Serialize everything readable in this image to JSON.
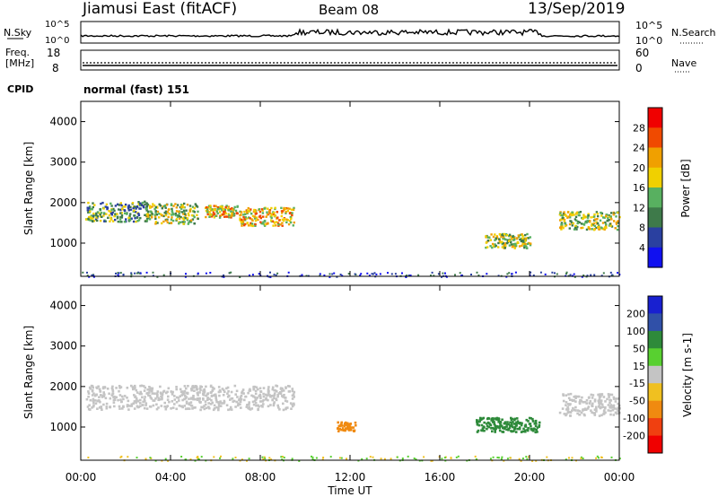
{
  "header": {
    "station": "Jiamusi East (fitACF)",
    "beam": "Beam 08",
    "date": "13/Sep/2019"
  },
  "noise_panel": {
    "left_label": "N.Sky",
    "right_label": "N.Search",
    "left_ticks": [
      "10^5",
      "10^0"
    ],
    "right_ticks": [
      "10^5",
      "10^0"
    ]
  },
  "freq_panel": {
    "left_label_1": "Freq.",
    "left_label_2": "[MHz]",
    "left_ticks": [
      "18",
      "8"
    ],
    "right_label": "Nave",
    "right_ticks": [
      "60",
      "0"
    ]
  },
  "cpid": {
    "label": "CPID",
    "value": "normal (fast) 151"
  },
  "axes": {
    "ylabel": "Slant Range [km]",
    "yticks": [
      "4000",
      "3000",
      "2000",
      "1000"
    ],
    "xlabel": "Time UT",
    "xticks": [
      "00:00",
      "04:00",
      "08:00",
      "12:00",
      "16:00",
      "20:00",
      "00:00"
    ]
  },
  "power_scale": {
    "label": "Power [dB]",
    "ticks": [
      "28",
      "24",
      "20",
      "16",
      "12",
      "8",
      "4"
    ],
    "colors": [
      "#f00000",
      "#f04a00",
      "#f0a000",
      "#f0d000",
      "#58b060",
      "#3e7a4a",
      "#2a40a0",
      "#1010f0"
    ]
  },
  "velocity_scale": {
    "label": "Velocity [m s-1]",
    "ticks": [
      "200",
      "100",
      "50",
      "15",
      "-15",
      "-50",
      "-100",
      "-200"
    ],
    "colors": [
      "#1820d0",
      "#3050a8",
      "#2e8a3a",
      "#58d030",
      "#c4c4c4",
      "#f0c020",
      "#f08a10",
      "#f04010",
      "#f00000"
    ]
  },
  "chart_data": {
    "type": "heatmap",
    "x_range_hours": [
      0,
      24
    ],
    "y_range_km": [
      180,
      4500
    ],
    "power_patches": [
      {
        "t0": 0.2,
        "t1": 3.0,
        "r0": 1550,
        "r1": 2050,
        "level": 3
      },
      {
        "t0": 2.8,
        "t1": 5.2,
        "r0": 1500,
        "r1": 2000,
        "level": 4
      },
      {
        "t0": 5.5,
        "t1": 7.0,
        "r0": 1650,
        "r1": 1950,
        "level": 5
      },
      {
        "t0": 7.0,
        "t1": 9.5,
        "r0": 1450,
        "r1": 1900,
        "level": 5
      },
      {
        "t0": 18.0,
        "t1": 20.0,
        "r0": 900,
        "r1": 1250,
        "level": 4
      },
      {
        "t0": 21.3,
        "t1": 24.0,
        "r0": 1350,
        "r1": 1800,
        "level": 4
      }
    ],
    "velocity_patches": [
      {
        "t0": 11.4,
        "t1": 12.2,
        "r0": 920,
        "r1": 1150,
        "value": -100
      },
      {
        "t0": 17.6,
        "t1": 20.4,
        "r0": 900,
        "r1": 1250,
        "value": 50
      },
      {
        "t0": 0.2,
        "t1": 9.5,
        "r0": 1450,
        "r1": 2050,
        "value": 0
      },
      {
        "t0": 21.3,
        "t1": 24.0,
        "r0": 1300,
        "r1": 1850,
        "value": 0
      }
    ]
  }
}
